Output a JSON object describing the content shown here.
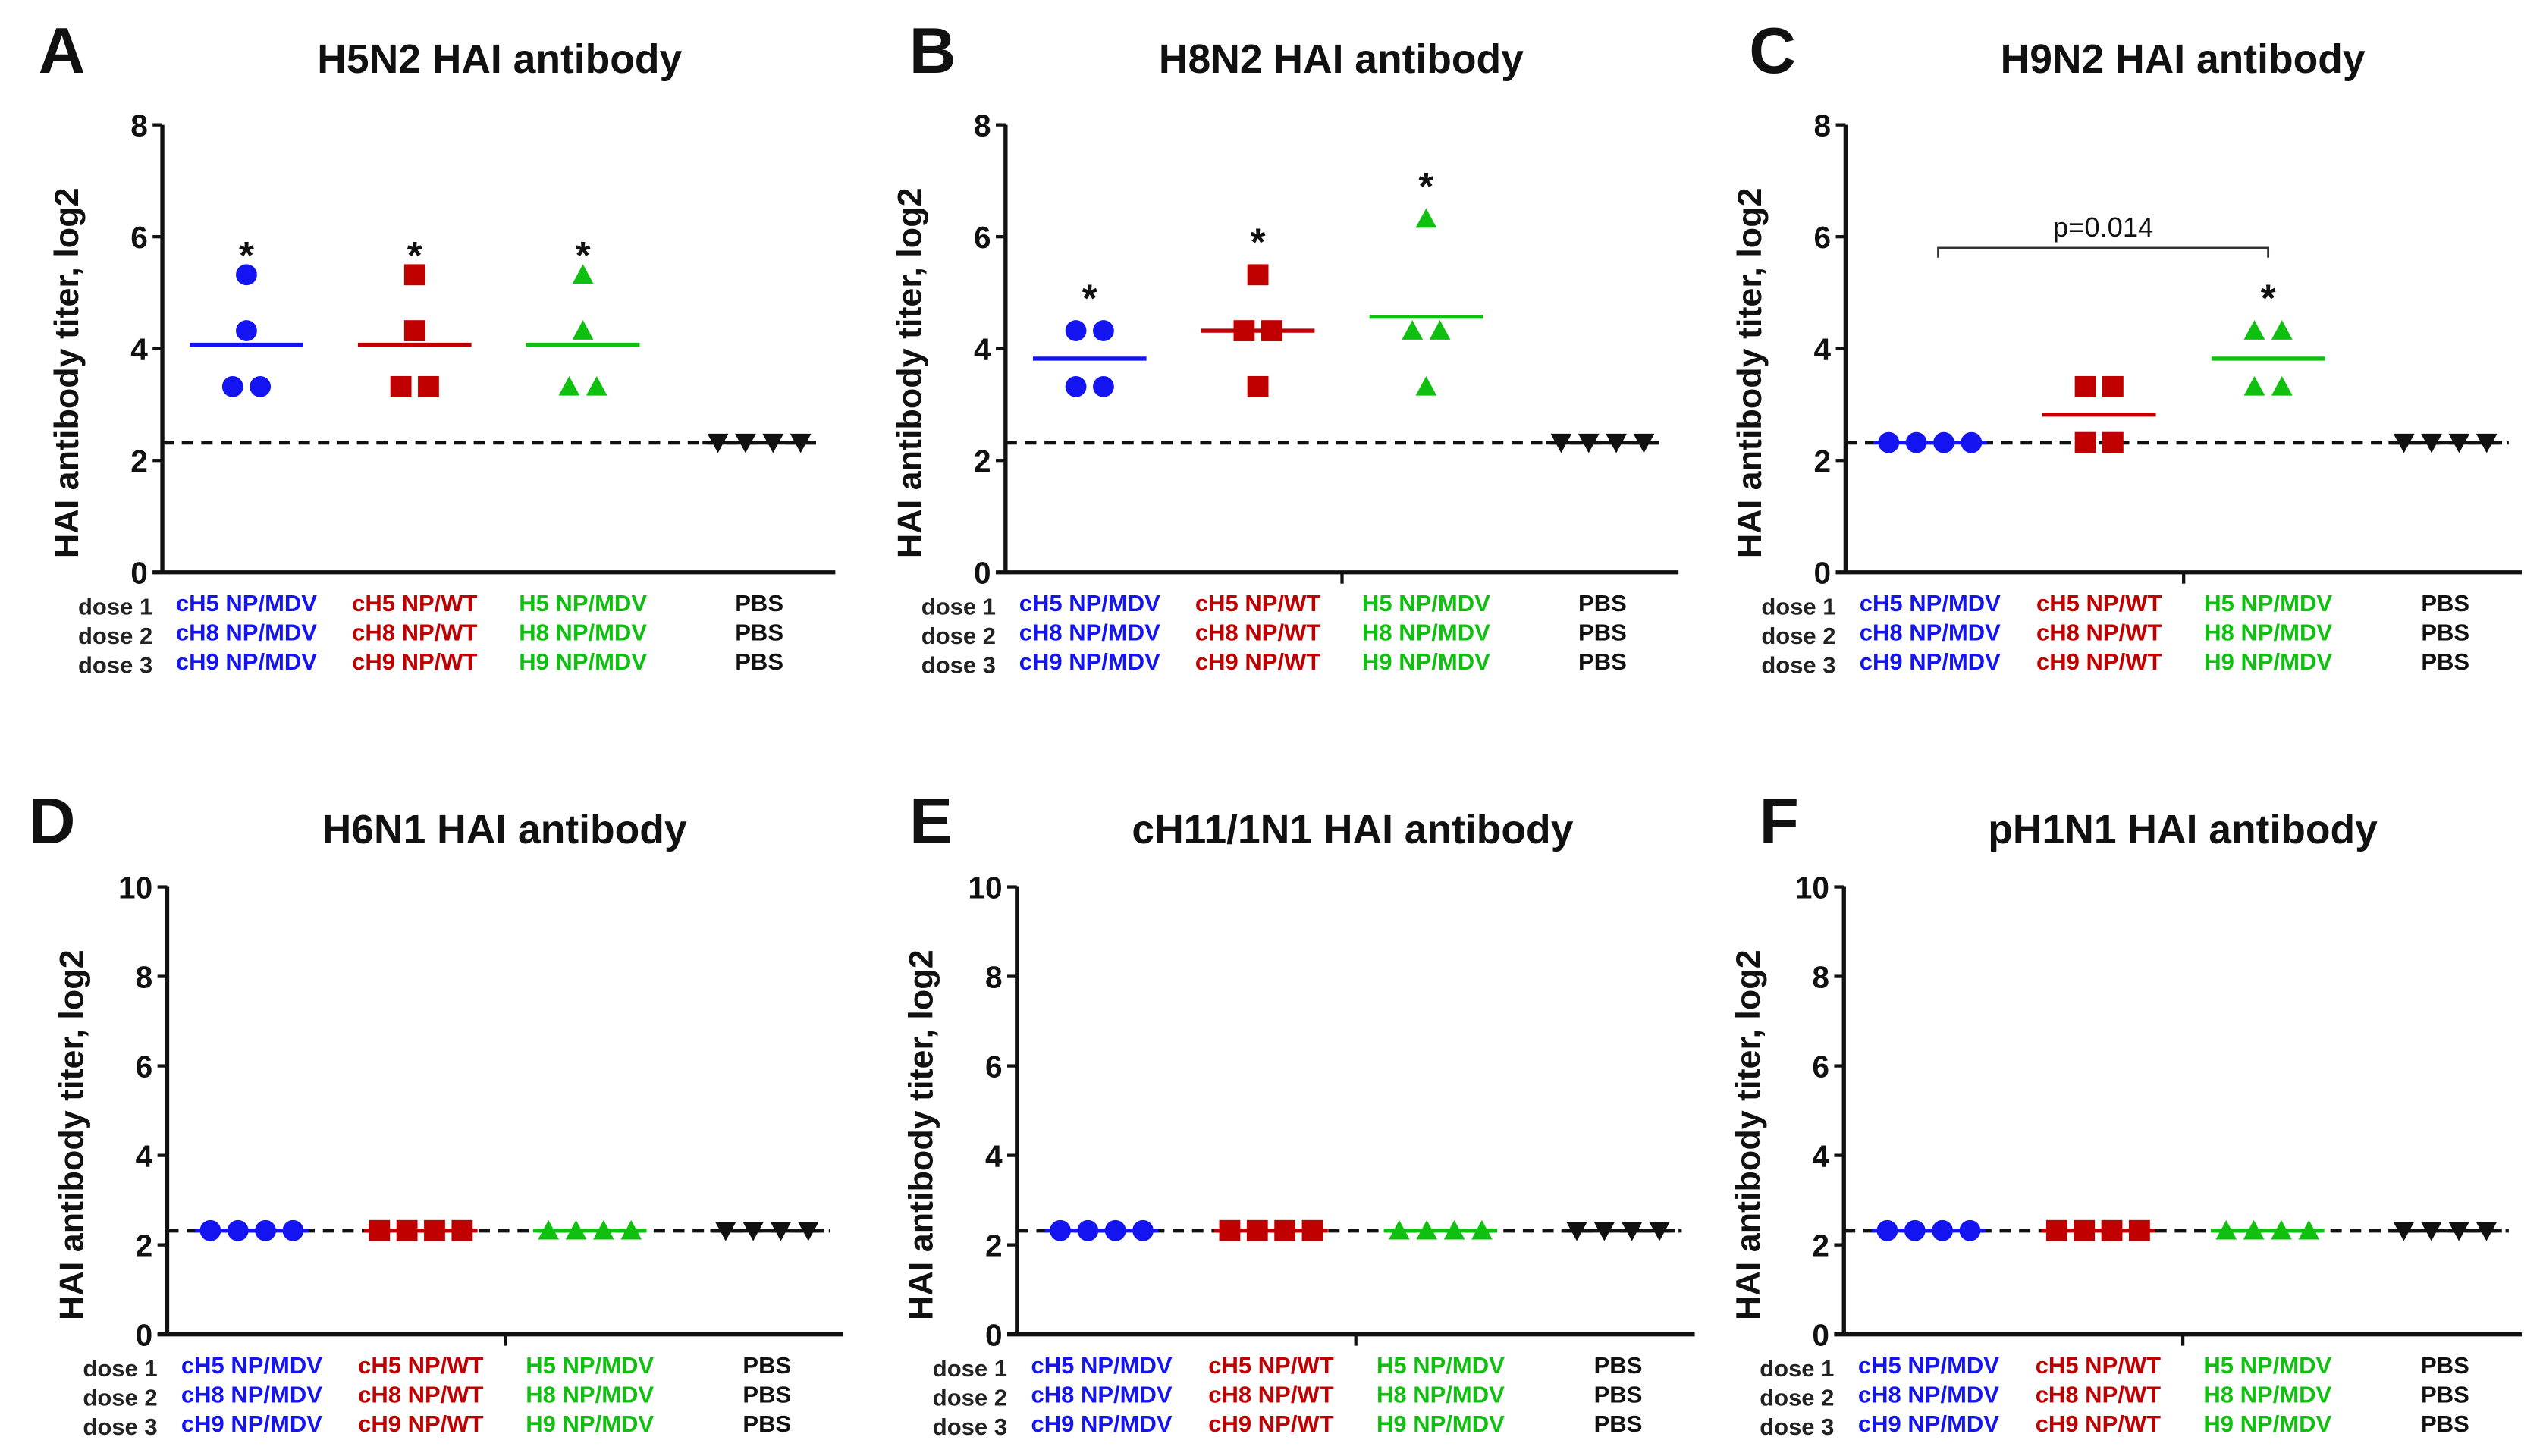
{
  "colors": {
    "blue": "#1414f0",
    "red": "#c00000",
    "green": "#10c010",
    "black": "#111111"
  },
  "dose_labels": [
    "dose 1",
    "dose 2",
    "dose 3"
  ],
  "groups": [
    {
      "color": "blue",
      "marker": "circle",
      "labels": [
        "cH5 NP/MDV",
        "cH8 NP/MDV",
        "cH9 NP/MDV"
      ]
    },
    {
      "color": "red",
      "marker": "square",
      "labels": [
        "cH5 NP/WT",
        "cH8 NP/WT",
        "cH9 NP/WT"
      ]
    },
    {
      "color": "green",
      "marker": "triangle",
      "labels": [
        "H5 NP/MDV",
        "H8 NP/MDV",
        "H9 NP/MDV"
      ]
    },
    {
      "color": "black",
      "marker": "triangle-down",
      "labels": [
        "PBS",
        "PBS",
        "PBS"
      ]
    }
  ],
  "chart_data": [
    {
      "letter": "A",
      "type": "scatter",
      "title": "H5N2 HAI antibody",
      "ylabel": "HAI antibody titer, log2",
      "ylim": [
        0,
        8
      ],
      "yticks": [
        "0",
        "2",
        "4",
        "6",
        "8"
      ],
      "detection_limit": 2.32,
      "series": [
        {
          "values": [
            5.32,
            4.32,
            3.32,
            3.32
          ],
          "mean": 4.07,
          "star": "*"
        },
        {
          "values": [
            5.32,
            4.32,
            3.32,
            3.32
          ],
          "mean": 4.07,
          "star": "*"
        },
        {
          "values": [
            5.32,
            4.32,
            3.32,
            3.32
          ],
          "mean": 4.07,
          "star": "*"
        },
        {
          "values": [
            2.32,
            2.32,
            2.32,
            2.32
          ],
          "mean": 2.32,
          "star": ""
        }
      ]
    },
    {
      "letter": "B",
      "type": "scatter",
      "title": "H8N2 HAI antibody",
      "ylabel": "HAI antibody titer, log2",
      "ylim": [
        0,
        8
      ],
      "yticks": [
        "0",
        "2",
        "4",
        "6",
        "8"
      ],
      "detection_limit": 2.32,
      "series": [
        {
          "values": [
            4.32,
            4.32,
            3.32,
            3.32
          ],
          "mean": 3.82,
          "star": "*"
        },
        {
          "values": [
            5.32,
            4.32,
            4.32,
            3.32
          ],
          "mean": 4.32,
          "star": "*"
        },
        {
          "values": [
            6.32,
            4.32,
            4.32,
            3.32
          ],
          "mean": 4.57,
          "star": "*"
        },
        {
          "values": [
            2.32,
            2.32,
            2.32,
            2.32
          ],
          "mean": 2.32,
          "star": ""
        }
      ]
    },
    {
      "letter": "C",
      "type": "scatter",
      "title": "H9N2 HAI antibody",
      "ylabel": "HAI antibody titer, log2",
      "ylim": [
        0,
        8
      ],
      "yticks": [
        "0",
        "2",
        "4",
        "6",
        "8"
      ],
      "detection_limit": 2.32,
      "series": [
        {
          "values": [
            2.32,
            2.32,
            2.32,
            2.32
          ],
          "mean": 2.32,
          "star": ""
        },
        {
          "values": [
            3.32,
            3.32,
            2.32,
            2.32
          ],
          "mean": 2.82,
          "star": ""
        },
        {
          "values": [
            4.32,
            4.32,
            3.32,
            3.32
          ],
          "mean": 3.82,
          "star": "*"
        },
        {
          "values": [
            2.32,
            2.32,
            2.32,
            2.32
          ],
          "mean": 2.32,
          "star": ""
        }
      ],
      "bracket": {
        "from": 0,
        "to": 2,
        "y": 5.8,
        "label": "p=0.014"
      }
    },
    {
      "letter": "D",
      "type": "scatter",
      "title": "H6N1 HAI antibody",
      "ylabel": "HAI antibody titer, log2",
      "ylim": [
        0,
        10
      ],
      "yticks": [
        "0",
        "2",
        "4",
        "6",
        "8",
        "10"
      ],
      "detection_limit": 2.32,
      "series": [
        {
          "values": [
            2.32,
            2.32,
            2.32,
            2.32
          ],
          "mean": 2.32,
          "star": ""
        },
        {
          "values": [
            2.32,
            2.32,
            2.32,
            2.32
          ],
          "mean": 2.32,
          "star": ""
        },
        {
          "values": [
            2.32,
            2.32,
            2.32,
            2.32
          ],
          "mean": 2.32,
          "star": ""
        },
        {
          "values": [
            2.32,
            2.32,
            2.32,
            2.32
          ],
          "mean": 2.32,
          "star": ""
        }
      ]
    },
    {
      "letter": "E",
      "type": "scatter",
      "title": "cH11/1N1 HAI antibody",
      "ylabel": "HAI antibody titer, log2",
      "ylim": [
        0,
        10
      ],
      "yticks": [
        "0",
        "2",
        "4",
        "6",
        "8",
        "10"
      ],
      "detection_limit": 2.32,
      "series": [
        {
          "values": [
            2.32,
            2.32,
            2.32,
            2.32
          ],
          "mean": 2.32,
          "star": ""
        },
        {
          "values": [
            2.32,
            2.32,
            2.32,
            2.32
          ],
          "mean": 2.32,
          "star": ""
        },
        {
          "values": [
            2.32,
            2.32,
            2.32,
            2.32
          ],
          "mean": 2.32,
          "star": ""
        },
        {
          "values": [
            2.32,
            2.32,
            2.32,
            2.32
          ],
          "mean": 2.32,
          "star": ""
        }
      ]
    },
    {
      "letter": "F",
      "type": "scatter",
      "title": "pH1N1 HAI antibody",
      "ylabel": "HAI antibody titer, log2",
      "ylim": [
        0,
        10
      ],
      "yticks": [
        "0",
        "2",
        "4",
        "6",
        "8",
        "10"
      ],
      "detection_limit": 2.32,
      "series": [
        {
          "values": [
            2.32,
            2.32,
            2.32,
            2.32
          ],
          "mean": 2.32,
          "star": ""
        },
        {
          "values": [
            2.32,
            2.32,
            2.32,
            2.32
          ],
          "mean": 2.32,
          "star": ""
        },
        {
          "values": [
            2.32,
            2.32,
            2.32,
            2.32
          ],
          "mean": 2.32,
          "star": ""
        },
        {
          "values": [
            2.32,
            2.32,
            2.32,
            2.32
          ],
          "mean": 2.32,
          "star": ""
        }
      ]
    }
  ]
}
